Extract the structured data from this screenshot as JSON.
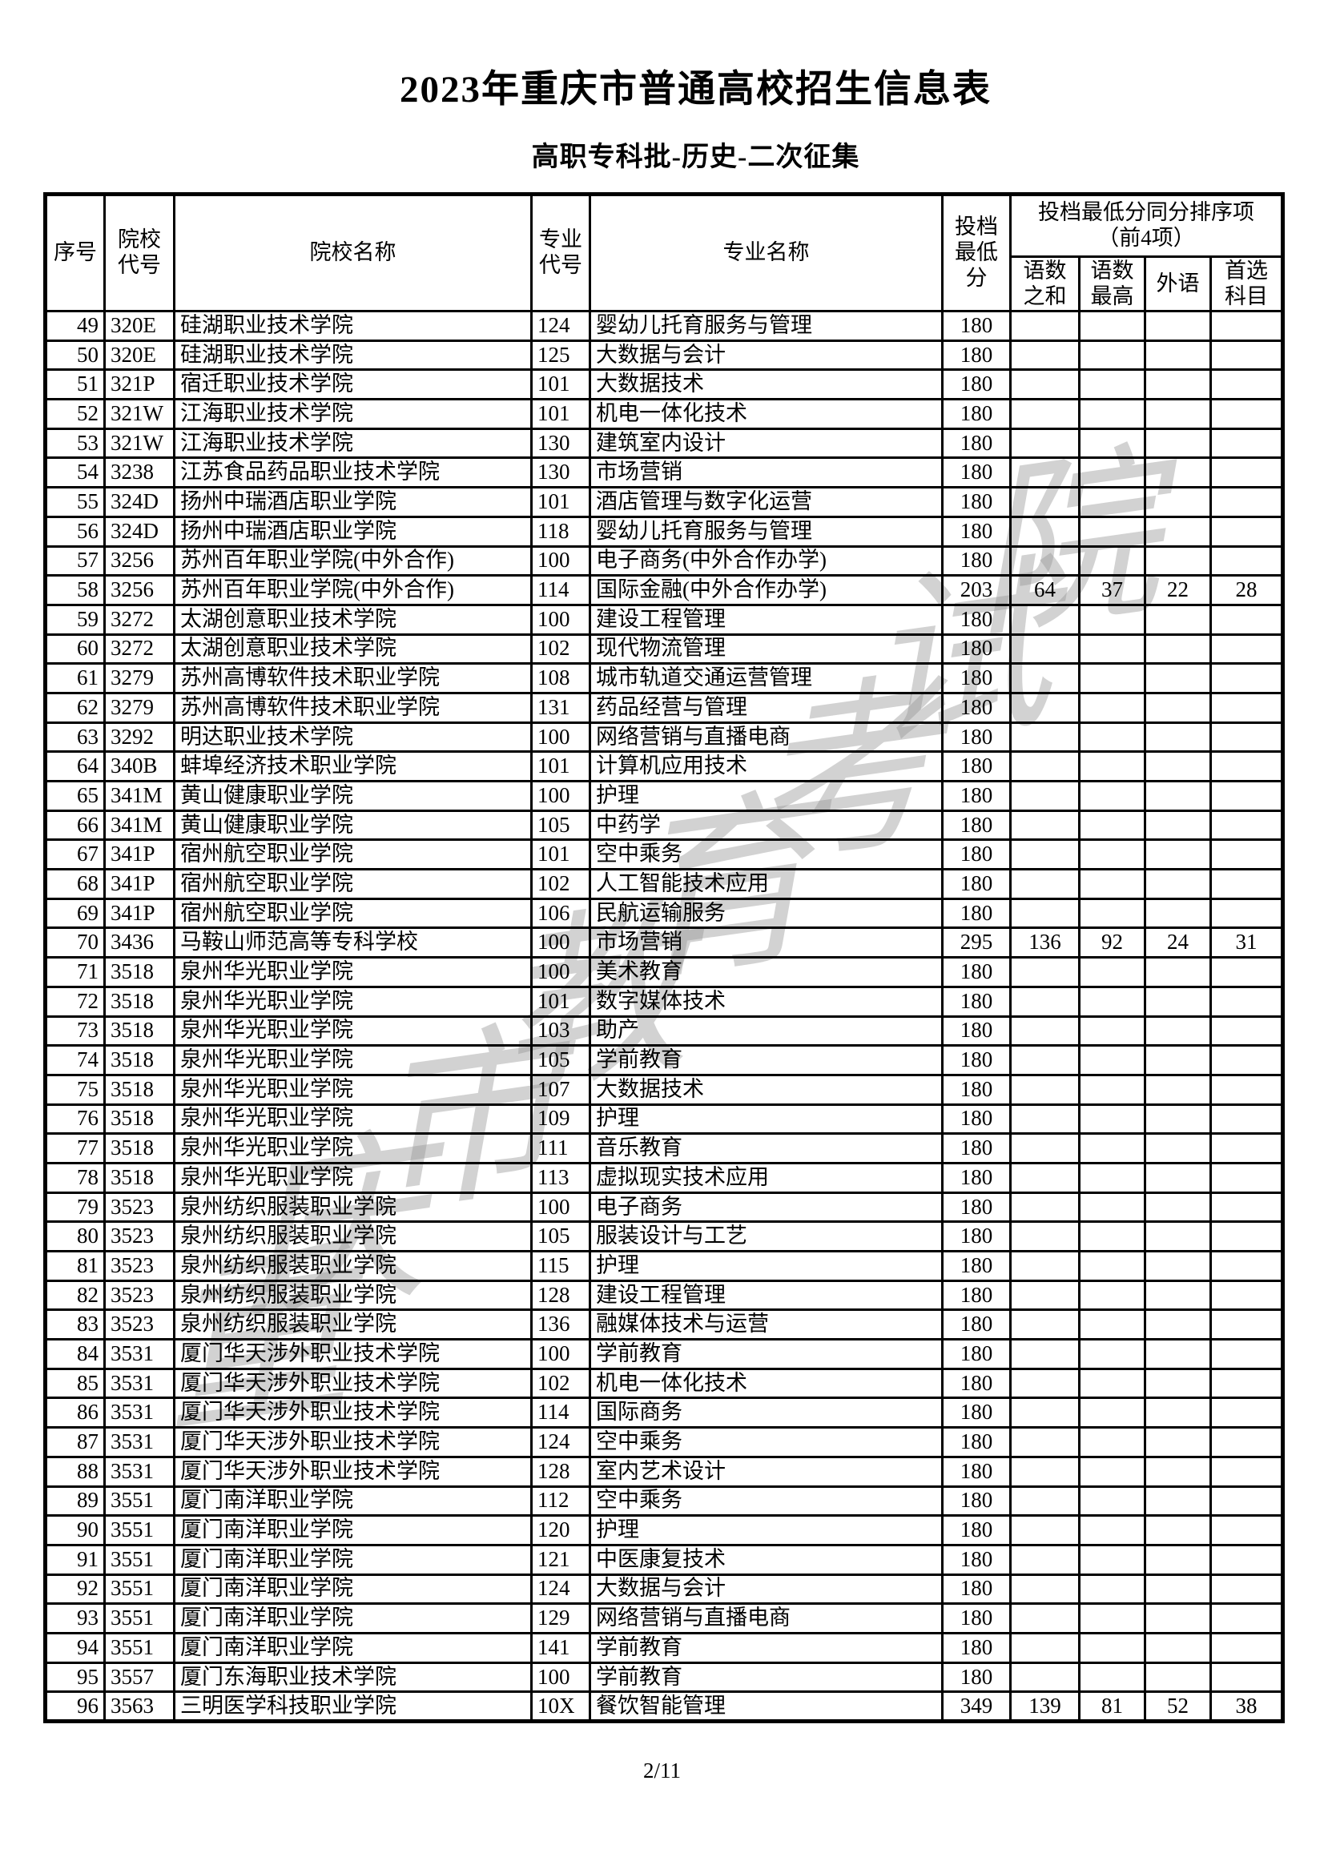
{
  "page": {
    "title": "2023年重庆市普通高校招生信息表",
    "subtitle": "高职专科批-历史-二次征集",
    "watermark": "重庆市教育考试院",
    "footer_page": "2/11"
  },
  "table": {
    "headers": {
      "seq": "序号",
      "college_code": "院校\n代号",
      "college_name": "院校名称",
      "major_code": "专业\n代号",
      "major_name": "专业名称",
      "min_score": "投档\n最低\n分",
      "tiebreak_group": "投档最低分同分排序项\n（前4项）",
      "tb_sum": "语数\n之和",
      "tb_max": "语数\n最高",
      "tb_foreign": "外语",
      "tb_subject": "首选\n科目"
    },
    "rows": [
      [
        "49",
        "320E",
        "硅湖职业技术学院",
        "124",
        "婴幼儿托育服务与管理",
        "180",
        "",
        "",
        "",
        ""
      ],
      [
        "50",
        "320E",
        "硅湖职业技术学院",
        "125",
        "大数据与会计",
        "180",
        "",
        "",
        "",
        ""
      ],
      [
        "51",
        "321P",
        "宿迁职业技术学院",
        "101",
        "大数据技术",
        "180",
        "",
        "",
        "",
        ""
      ],
      [
        "52",
        "321W",
        "江海职业技术学院",
        "101",
        "机电一体化技术",
        "180",
        "",
        "",
        "",
        ""
      ],
      [
        "53",
        "321W",
        "江海职业技术学院",
        "130",
        "建筑室内设计",
        "180",
        "",
        "",
        "",
        ""
      ],
      [
        "54",
        "3238",
        "江苏食品药品职业技术学院",
        "130",
        "市场营销",
        "180",
        "",
        "",
        "",
        ""
      ],
      [
        "55",
        "324D",
        "扬州中瑞酒店职业学院",
        "101",
        "酒店管理与数字化运营",
        "180",
        "",
        "",
        "",
        ""
      ],
      [
        "56",
        "324D",
        "扬州中瑞酒店职业学院",
        "118",
        "婴幼儿托育服务与管理",
        "180",
        "",
        "",
        "",
        ""
      ],
      [
        "57",
        "3256",
        "苏州百年职业学院(中外合作)",
        "100",
        "电子商务(中外合作办学)",
        "180",
        "",
        "",
        "",
        ""
      ],
      [
        "58",
        "3256",
        "苏州百年职业学院(中外合作)",
        "114",
        "国际金融(中外合作办学)",
        "203",
        "64",
        "37",
        "22",
        "28"
      ],
      [
        "59",
        "3272",
        "太湖创意职业技术学院",
        "100",
        "建设工程管理",
        "180",
        "",
        "",
        "",
        ""
      ],
      [
        "60",
        "3272",
        "太湖创意职业技术学院",
        "102",
        "现代物流管理",
        "180",
        "",
        "",
        "",
        ""
      ],
      [
        "61",
        "3279",
        "苏州高博软件技术职业学院",
        "108",
        "城市轨道交通运营管理",
        "180",
        "",
        "",
        "",
        ""
      ],
      [
        "62",
        "3279",
        "苏州高博软件技术职业学院",
        "131",
        "药品经营与管理",
        "180",
        "",
        "",
        "",
        ""
      ],
      [
        "63",
        "3292",
        "明达职业技术学院",
        "100",
        "网络营销与直播电商",
        "180",
        "",
        "",
        "",
        ""
      ],
      [
        "64",
        "340B",
        "蚌埠经济技术职业学院",
        "101",
        "计算机应用技术",
        "180",
        "",
        "",
        "",
        ""
      ],
      [
        "65",
        "341M",
        "黄山健康职业学院",
        "100",
        "护理",
        "180",
        "",
        "",
        "",
        ""
      ],
      [
        "66",
        "341M",
        "黄山健康职业学院",
        "105",
        "中药学",
        "180",
        "",
        "",
        "",
        ""
      ],
      [
        "67",
        "341P",
        "宿州航空职业学院",
        "101",
        "空中乘务",
        "180",
        "",
        "",
        "",
        ""
      ],
      [
        "68",
        "341P",
        "宿州航空职业学院",
        "102",
        "人工智能技术应用",
        "180",
        "",
        "",
        "",
        ""
      ],
      [
        "69",
        "341P",
        "宿州航空职业学院",
        "106",
        "民航运输服务",
        "180",
        "",
        "",
        "",
        ""
      ],
      [
        "70",
        "3436",
        "马鞍山师范高等专科学校",
        "100",
        "市场营销",
        "295",
        "136",
        "92",
        "24",
        "31"
      ],
      [
        "71",
        "3518",
        "泉州华光职业学院",
        "100",
        "美术教育",
        "180",
        "",
        "",
        "",
        ""
      ],
      [
        "72",
        "3518",
        "泉州华光职业学院",
        "101",
        "数字媒体技术",
        "180",
        "",
        "",
        "",
        ""
      ],
      [
        "73",
        "3518",
        "泉州华光职业学院",
        "103",
        "助产",
        "180",
        "",
        "",
        "",
        ""
      ],
      [
        "74",
        "3518",
        "泉州华光职业学院",
        "105",
        "学前教育",
        "180",
        "",
        "",
        "",
        ""
      ],
      [
        "75",
        "3518",
        "泉州华光职业学院",
        "107",
        "大数据技术",
        "180",
        "",
        "",
        "",
        ""
      ],
      [
        "76",
        "3518",
        "泉州华光职业学院",
        "109",
        "护理",
        "180",
        "",
        "",
        "",
        ""
      ],
      [
        "77",
        "3518",
        "泉州华光职业学院",
        "111",
        "音乐教育",
        "180",
        "",
        "",
        "",
        ""
      ],
      [
        "78",
        "3518",
        "泉州华光职业学院",
        "113",
        "虚拟现实技术应用",
        "180",
        "",
        "",
        "",
        ""
      ],
      [
        "79",
        "3523",
        "泉州纺织服装职业学院",
        "100",
        "电子商务",
        "180",
        "",
        "",
        "",
        ""
      ],
      [
        "80",
        "3523",
        "泉州纺织服装职业学院",
        "105",
        "服装设计与工艺",
        "180",
        "",
        "",
        "",
        ""
      ],
      [
        "81",
        "3523",
        "泉州纺织服装职业学院",
        "115",
        "护理",
        "180",
        "",
        "",
        "",
        ""
      ],
      [
        "82",
        "3523",
        "泉州纺织服装职业学院",
        "128",
        "建设工程管理",
        "180",
        "",
        "",
        "",
        ""
      ],
      [
        "83",
        "3523",
        "泉州纺织服装职业学院",
        "136",
        "融媒体技术与运营",
        "180",
        "",
        "",
        "",
        ""
      ],
      [
        "84",
        "3531",
        "厦门华天涉外职业技术学院",
        "100",
        "学前教育",
        "180",
        "",
        "",
        "",
        ""
      ],
      [
        "85",
        "3531",
        "厦门华天涉外职业技术学院",
        "102",
        "机电一体化技术",
        "180",
        "",
        "",
        "",
        ""
      ],
      [
        "86",
        "3531",
        "厦门华天涉外职业技术学院",
        "114",
        "国际商务",
        "180",
        "",
        "",
        "",
        ""
      ],
      [
        "87",
        "3531",
        "厦门华天涉外职业技术学院",
        "124",
        "空中乘务",
        "180",
        "",
        "",
        "",
        ""
      ],
      [
        "88",
        "3531",
        "厦门华天涉外职业技术学院",
        "128",
        "室内艺术设计",
        "180",
        "",
        "",
        "",
        ""
      ],
      [
        "89",
        "3551",
        "厦门南洋职业学院",
        "112",
        "空中乘务",
        "180",
        "",
        "",
        "",
        ""
      ],
      [
        "90",
        "3551",
        "厦门南洋职业学院",
        "120",
        "护理",
        "180",
        "",
        "",
        "",
        ""
      ],
      [
        "91",
        "3551",
        "厦门南洋职业学院",
        "121",
        "中医康复技术",
        "180",
        "",
        "",
        "",
        ""
      ],
      [
        "92",
        "3551",
        "厦门南洋职业学院",
        "124",
        "大数据与会计",
        "180",
        "",
        "",
        "",
        ""
      ],
      [
        "93",
        "3551",
        "厦门南洋职业学院",
        "129",
        "网络营销与直播电商",
        "180",
        "",
        "",
        "",
        ""
      ],
      [
        "94",
        "3551",
        "厦门南洋职业学院",
        "141",
        "学前教育",
        "180",
        "",
        "",
        "",
        ""
      ],
      [
        "95",
        "3557",
        "厦门东海职业技术学院",
        "100",
        "学前教育",
        "180",
        "",
        "",
        "",
        ""
      ],
      [
        "96",
        "3563",
        "三明医学科技职业学院",
        "10X",
        "餐饮智能管理",
        "349",
        "139",
        "81",
        "52",
        "38"
      ]
    ]
  }
}
